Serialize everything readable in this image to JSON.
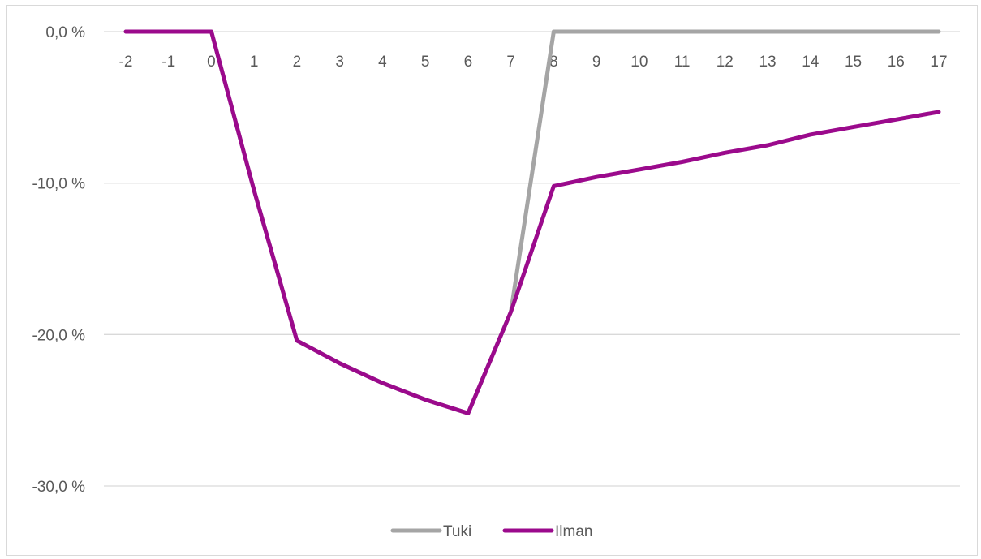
{
  "chart_data": {
    "type": "line",
    "title": "",
    "xlabel": "",
    "ylabel": "",
    "x": [
      -2,
      -1,
      0,
      1,
      2,
      3,
      4,
      5,
      6,
      7,
      8,
      9,
      10,
      11,
      12,
      13,
      14,
      15,
      16,
      17
    ],
    "x_tick_labels": [
      "-2",
      "-1",
      "0",
      "1",
      "2",
      "3",
      "4",
      "5",
      "6",
      "7",
      "8",
      "9",
      "10",
      "11",
      "12",
      "13",
      "14",
      "15",
      "16",
      "17"
    ],
    "y_ticks": [
      0,
      -10,
      -20,
      -30
    ],
    "y_tick_labels": [
      "0,0 %",
      "-10,0 %",
      "-20,0 %",
      "-30,0 %"
    ],
    "ylim": [
      -30,
      0
    ],
    "grid": true,
    "legend_position": "bottom",
    "series": [
      {
        "name": "Tuki",
        "color": "#a5a5a5",
        "values": [
          0,
          0,
          0,
          -10.5,
          -20.4,
          -21.9,
          -23.2,
          -24.3,
          -25.2,
          -18.5,
          0,
          0,
          0,
          0,
          0,
          0,
          0,
          0,
          0,
          0
        ]
      },
      {
        "name": "Ilman",
        "color": "#9b0a8c",
        "values": [
          0,
          0,
          0,
          -10.5,
          -20.4,
          -21.9,
          -23.2,
          -24.3,
          -25.2,
          -18.5,
          -10.2,
          -9.6,
          -9.1,
          -8.6,
          -8.0,
          -7.5,
          -6.8,
          -6.3,
          -5.8,
          -5.3
        ]
      }
    ]
  }
}
